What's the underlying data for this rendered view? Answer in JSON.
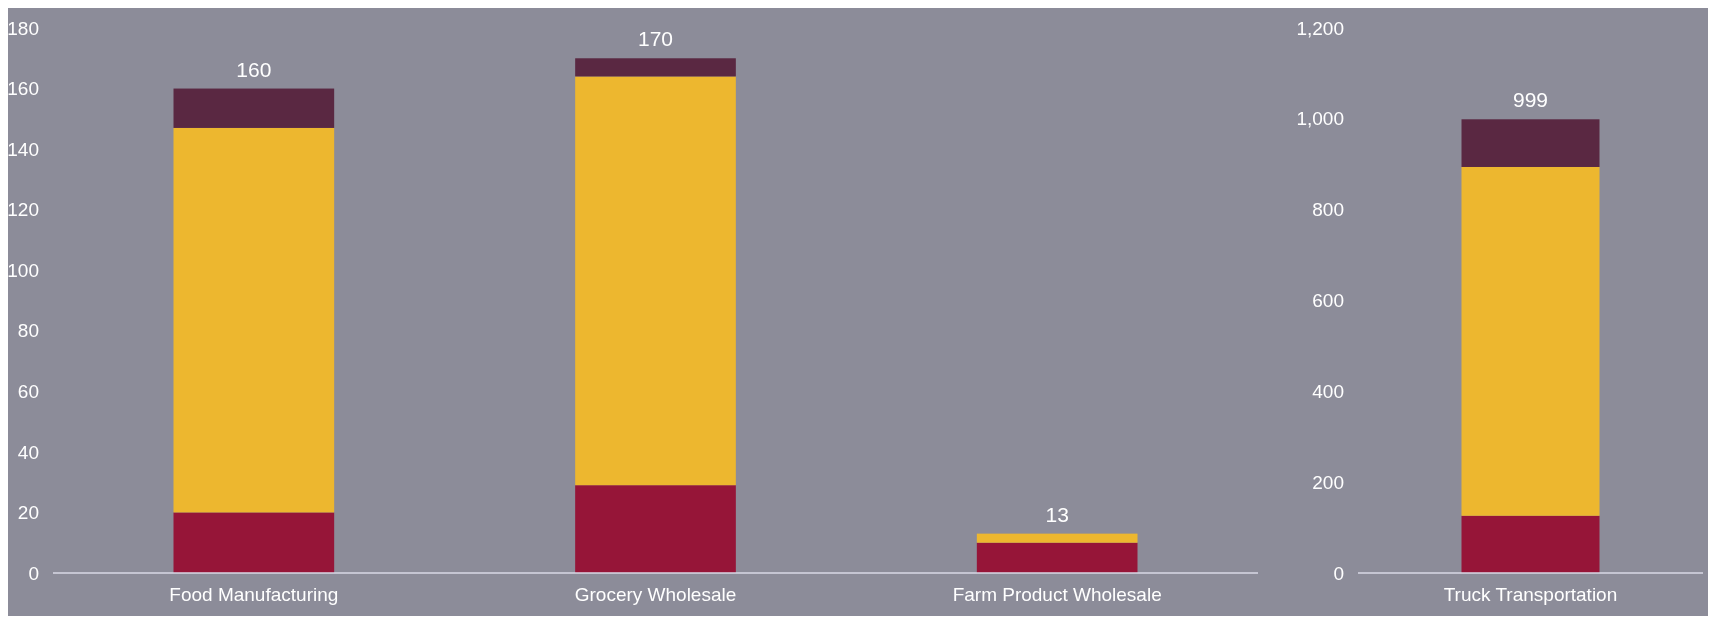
{
  "chart_data": [
    {
      "type": "bar",
      "stacked": true,
      "categories": [
        "Food Manufacturing",
        "Grocery Wholesale",
        "Farm Product Wholesale"
      ],
      "series": [
        {
          "color": "#961538",
          "values": [
            20,
            29,
            10
          ]
        },
        {
          "color": "#edb72f",
          "values": [
            127,
            135,
            3
          ]
        },
        {
          "color": "#5a2842",
          "values": [
            13,
            6,
            0
          ]
        }
      ],
      "ylim": [
        0,
        180
      ],
      "yticks": [
        0,
        20,
        40,
        60,
        80,
        100,
        120,
        140,
        160,
        180
      ],
      "totals": [
        "160",
        "170",
        "13"
      ]
    },
    {
      "type": "bar",
      "stacked": true,
      "categories": [
        "Truck Transportation"
      ],
      "series": [
        {
          "color": "#961538",
          "values": [
            126
          ]
        },
        {
          "color": "#edb72f",
          "values": [
            768
          ]
        },
        {
          "color": "#5a2842",
          "values": [
            105
          ]
        }
      ],
      "ylim": [
        0,
        1200
      ],
      "yticks": [
        0,
        200,
        400,
        600,
        800,
        {
          "value": 1000,
          "label": "1,000"
        },
        {
          "value": 1200,
          "label": "1,200"
        }
      ],
      "totals": [
        "999"
      ]
    }
  ]
}
